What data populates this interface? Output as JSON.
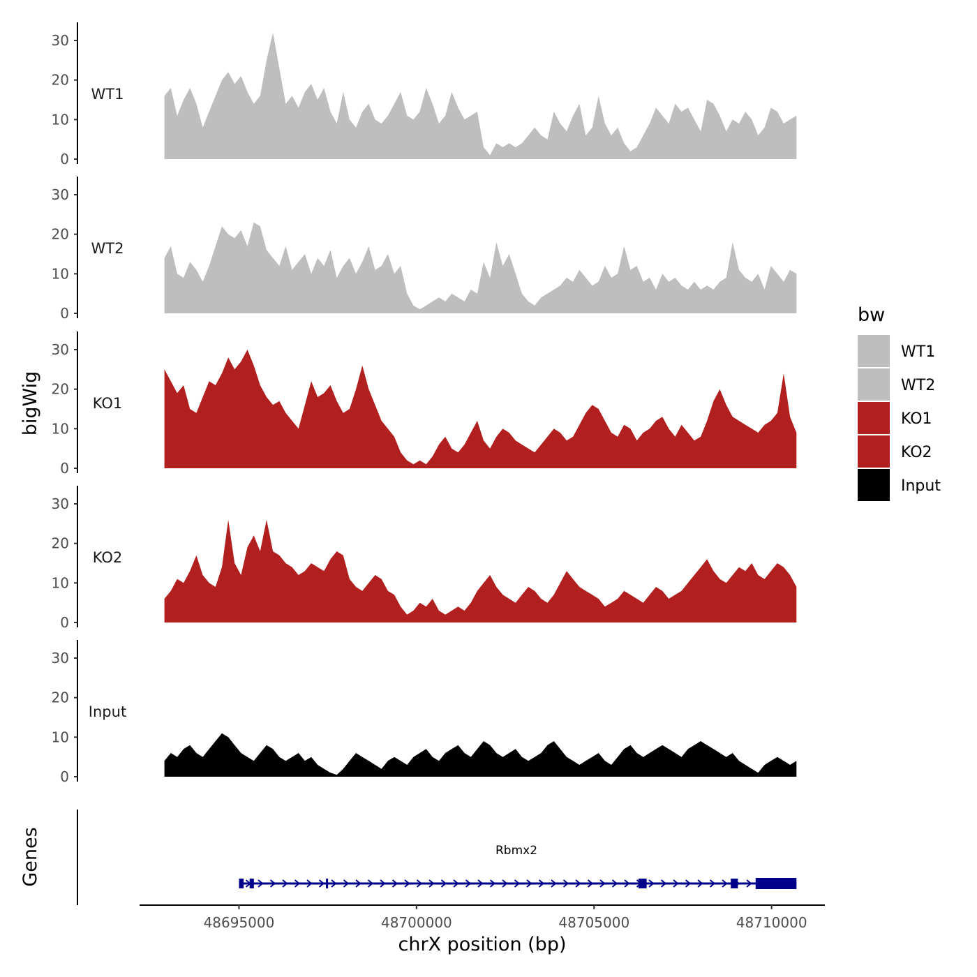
{
  "chart_data": {
    "type": "area",
    "title": "",
    "xlabel": "chrX position (bp)",
    "ylabel": "bigWig",
    "genes_label": "Genes",
    "xlim": [
      48692200,
      48711500
    ],
    "ylim": [
      0,
      33
    ],
    "x_ticks": [
      48695000,
      48700000,
      48705000,
      48710000
    ],
    "x_tick_labels": [
      "48695000",
      "48700000",
      "48705000",
      "48710000"
    ],
    "y_ticks": [
      0,
      10,
      20,
      30
    ],
    "y_tick_labels": [
      "0",
      "10",
      "20",
      "30"
    ],
    "signal_start": 48692900,
    "signal_end": 48710700,
    "tracks": [
      {
        "name": "WT1",
        "color": "#bebebe",
        "values": [
          16,
          18,
          11,
          15,
          18,
          14,
          8,
          12,
          16,
          20,
          22,
          19,
          21,
          17,
          14,
          16,
          25,
          32,
          23,
          14,
          16,
          13,
          17,
          19,
          15,
          18,
          12,
          9,
          17,
          10,
          8,
          12,
          14,
          10,
          9,
          11,
          14,
          17,
          11,
          10,
          12,
          18,
          14,
          9,
          11,
          17,
          13,
          10,
          11,
          12,
          3,
          1,
          4,
          3,
          4,
          3,
          4,
          6,
          8,
          6,
          5,
          12,
          9,
          7,
          11,
          14,
          6,
          8,
          16,
          9,
          6,
          8,
          4,
          2,
          3,
          6,
          9,
          13,
          11,
          9,
          14,
          12,
          13,
          10,
          7,
          15,
          14,
          11,
          7,
          10,
          9,
          12,
          10,
          6,
          8,
          13,
          12,
          9,
          10,
          11
        ]
      },
      {
        "name": "WT2",
        "color": "#bebebe",
        "values": [
          14,
          17,
          10,
          9,
          13,
          11,
          8,
          12,
          17,
          22,
          20,
          19,
          21,
          17,
          23,
          22,
          16,
          14,
          12,
          17,
          11,
          13,
          15,
          10,
          14,
          12,
          16,
          9,
          12,
          14,
          10,
          13,
          17,
          11,
          12,
          15,
          10,
          12,
          5,
          2,
          1,
          2,
          3,
          4,
          3,
          5,
          4,
          3,
          6,
          5,
          13,
          9,
          18,
          12,
          15,
          10,
          5,
          3,
          2,
          4,
          5,
          6,
          7,
          9,
          8,
          11,
          9,
          7,
          8,
          12,
          9,
          10,
          17,
          11,
          12,
          8,
          9,
          6,
          10,
          8,
          9,
          7,
          6,
          8,
          6,
          7,
          6,
          8,
          9,
          18,
          11,
          9,
          8,
          10,
          6,
          12,
          10,
          8,
          11,
          10
        ]
      },
      {
        "name": "KO1",
        "color": "#b21f1f",
        "values": [
          25,
          22,
          19,
          21,
          15,
          14,
          18,
          22,
          21,
          24,
          28,
          25,
          27,
          30,
          26,
          21,
          18,
          16,
          17,
          14,
          12,
          10,
          16,
          22,
          18,
          19,
          21,
          17,
          14,
          15,
          20,
          26,
          20,
          16,
          12,
          10,
          8,
          4,
          2,
          1,
          2,
          1,
          3,
          6,
          8,
          5,
          4,
          6,
          9,
          12,
          7,
          5,
          8,
          10,
          9,
          7,
          6,
          5,
          4,
          6,
          8,
          10,
          9,
          7,
          8,
          11,
          14,
          16,
          15,
          12,
          9,
          8,
          11,
          10,
          7,
          9,
          10,
          12,
          13,
          10,
          8,
          11,
          9,
          7,
          8,
          12,
          17,
          20,
          16,
          13,
          12,
          11,
          10,
          9,
          11,
          12,
          14,
          24,
          13,
          9
        ]
      },
      {
        "name": "KO2",
        "color": "#b21f1f",
        "values": [
          6,
          8,
          11,
          10,
          13,
          17,
          12,
          10,
          9,
          14,
          26,
          15,
          12,
          19,
          22,
          18,
          26,
          18,
          17,
          15,
          14,
          12,
          13,
          15,
          14,
          13,
          16,
          18,
          17,
          11,
          9,
          8,
          10,
          12,
          11,
          8,
          7,
          4,
          2,
          3,
          5,
          4,
          6,
          3,
          2,
          3,
          4,
          3,
          5,
          8,
          10,
          12,
          9,
          7,
          6,
          5,
          7,
          9,
          8,
          6,
          5,
          7,
          10,
          13,
          11,
          9,
          8,
          7,
          6,
          4,
          5,
          6,
          8,
          7,
          6,
          5,
          7,
          9,
          8,
          6,
          7,
          8,
          10,
          12,
          14,
          16,
          13,
          11,
          10,
          12,
          14,
          13,
          15,
          12,
          11,
          13,
          15,
          14,
          12,
          9
        ]
      },
      {
        "name": "Input",
        "color": "#000000",
        "values": [
          4,
          6,
          5,
          7,
          8,
          6,
          5,
          7,
          9,
          11,
          10,
          8,
          6,
          5,
          4,
          6,
          8,
          7,
          5,
          4,
          5,
          6,
          4,
          5,
          3,
          2,
          1,
          0.5,
          2,
          4,
          6,
          5,
          4,
          3,
          2,
          4,
          5,
          4,
          3,
          5,
          6,
          7,
          5,
          4,
          6,
          7,
          8,
          6,
          5,
          7,
          9,
          8,
          6,
          5,
          6,
          7,
          5,
          4,
          5,
          6,
          8,
          9,
          7,
          5,
          4,
          3,
          4,
          5,
          6,
          4,
          3,
          5,
          7,
          8,
          6,
          5,
          6,
          7,
          8,
          7,
          6,
          5,
          7,
          8,
          9,
          8,
          7,
          6,
          5,
          6,
          4,
          3,
          2,
          1,
          3,
          4,
          5,
          4,
          3,
          4
        ]
      }
    ],
    "legend": {
      "title": "bw",
      "position": "right",
      "items": [
        {
          "label": "WT1",
          "color": "#bebebe"
        },
        {
          "label": "WT2",
          "color": "#bebebe"
        },
        {
          "label": "KO1",
          "color": "#b21f1f"
        },
        {
          "label": "KO2",
          "color": "#b21f1f"
        },
        {
          "label": "Input",
          "color": "#000000"
        }
      ]
    },
    "gene": {
      "name": "Rbmx2",
      "color": "#00008b",
      "strand": "+",
      "start": 48695000,
      "end": 48710700,
      "exons": [
        [
          48695000,
          48695130
        ],
        [
          48695300,
          48695420
        ],
        [
          48697450,
          48697490
        ],
        [
          48706250,
          48706480
        ],
        [
          48708850,
          48709050
        ],
        [
          48709550,
          48710700
        ]
      ]
    }
  }
}
